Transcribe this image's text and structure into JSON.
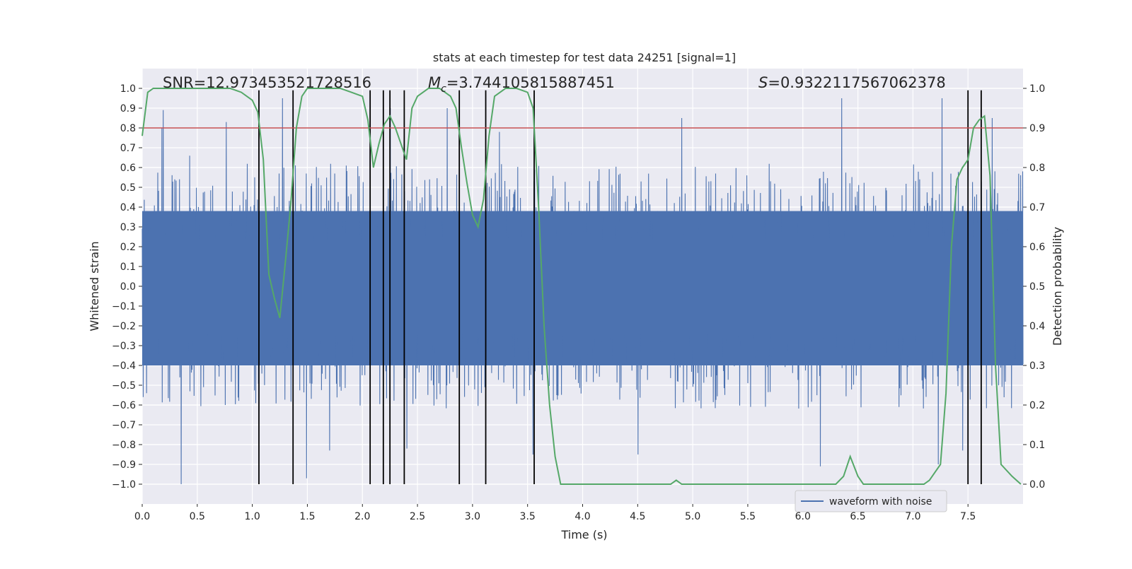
{
  "chart_data": {
    "type": "line",
    "title": "stats at each timestep for test data 24251 [signal=1]",
    "xlabel": "Time (s)",
    "ylabel": "Whitened strain",
    "y2label": "Detection probability",
    "xlim": [
      0.0,
      8.0
    ],
    "ylim": [
      -1.1,
      1.1
    ],
    "y2lim": [
      -0.05,
      1.05
    ],
    "xticks": [
      0.0,
      0.5,
      1.0,
      1.5,
      2.0,
      2.5,
      3.0,
      3.5,
      4.0,
      4.5,
      5.0,
      5.5,
      6.0,
      6.5,
      7.0,
      7.5
    ],
    "xtick_labels": [
      "0.0",
      "0.5",
      "1.0",
      "1.5",
      "2.0",
      "2.5",
      "3.0",
      "3.5",
      "4.0",
      "4.5",
      "5.0",
      "5.5",
      "6.0",
      "6.5",
      "7.0",
      "7.5"
    ],
    "yticks": [
      1.0,
      0.9,
      0.8,
      0.7,
      0.6,
      0.5,
      0.4,
      0.3,
      0.2,
      0.1,
      0.0,
      -0.1,
      -0.2,
      -0.3,
      -0.4,
      -0.5,
      -0.6,
      -0.7,
      -0.8,
      -0.9,
      -1.0
    ],
    "ytick_labels": [
      "1.0",
      "0.9",
      "0.8",
      "0.7",
      "0.6",
      "0.5",
      "0.4",
      "0.3",
      "0.2",
      "0.1",
      "0.0",
      "−0.1",
      "−0.2",
      "−0.3",
      "−0.4",
      "−0.5",
      "−0.6",
      "−0.7",
      "−0.8",
      "−0.9",
      "−1.0"
    ],
    "y2ticks": [
      1.0,
      0.9,
      0.8,
      0.7,
      0.6,
      0.5,
      0.4,
      0.3,
      0.2,
      0.1,
      0.0
    ],
    "y2tick_labels": [
      "1.0",
      "0.9",
      "0.8",
      "0.7",
      "0.6",
      "0.5",
      "0.4",
      "0.3",
      "0.2",
      "0.1",
      "0.0"
    ],
    "grid": true,
    "legend": {
      "position": "lower-right",
      "entries": [
        "waveform with noise"
      ]
    },
    "annotations": {
      "snr": "SNR=12.973453521728516",
      "mc_symbol": "M",
      "mc_sub": "c",
      "mc_value": "=3.744105815887451",
      "s_symbol": "S",
      "s_value": "=0.9322117567062378"
    },
    "threshold": {
      "axis": "y2",
      "value": 0.9,
      "color": "#c44e52"
    },
    "vlines": {
      "x": [
        1.06,
        1.37,
        2.07,
        2.19,
        2.25,
        2.38,
        2.88,
        3.12,
        3.56,
        7.5,
        7.62
      ],
      "ymin": -1.0,
      "ymax": 0.99
    },
    "series": [
      {
        "name": "waveform with noise",
        "axis": "y1",
        "color": "#4c72b0",
        "kind": "noise_band",
        "x_range": [
          0.0,
          8.0
        ],
        "samples": 2600,
        "dense_band": [
          -0.4,
          0.38
        ],
        "typical_peak_range": [
          0.35,
          0.62
        ],
        "visible_spikes": [
          {
            "x": 0.18,
            "y": 0.8
          },
          {
            "x": 0.19,
            "y": 0.89
          },
          {
            "x": 0.35,
            "y": -1.0
          },
          {
            "x": 0.43,
            "y": 0.66
          },
          {
            "x": 0.76,
            "y": 0.83
          },
          {
            "x": 1.27,
            "y": 0.95
          },
          {
            "x": 1.49,
            "y": -0.97
          },
          {
            "x": 1.7,
            "y": -0.83
          },
          {
            "x": 2.25,
            "y": 0.9
          },
          {
            "x": 2.4,
            "y": -0.82
          },
          {
            "x": 2.77,
            "y": 0.9
          },
          {
            "x": 3.24,
            "y": 0.78
          },
          {
            "x": 3.55,
            "y": -0.85
          },
          {
            "x": 4.5,
            "y": -0.85
          },
          {
            "x": 4.9,
            "y": 0.85
          },
          {
            "x": 6.16,
            "y": -0.91
          },
          {
            "x": 6.35,
            "y": 0.95
          },
          {
            "x": 7.26,
            "y": 0.95
          },
          {
            "x": 7.23,
            "y": -0.9
          },
          {
            "x": 7.45,
            "y": -0.83
          },
          {
            "x": 7.72,
            "y": 0.85
          }
        ]
      },
      {
        "name": "detection probability",
        "axis": "y2",
        "color": "#55a868",
        "x": [
          0.0,
          0.05,
          0.1,
          0.2,
          0.3,
          0.4,
          0.5,
          0.6,
          0.7,
          0.8,
          0.9,
          1.0,
          1.05,
          1.1,
          1.15,
          1.2,
          1.25,
          1.3,
          1.35,
          1.4,
          1.45,
          1.5,
          1.6,
          1.7,
          1.8,
          1.9,
          2.0,
          2.05,
          2.1,
          2.15,
          2.2,
          2.25,
          2.3,
          2.35,
          2.4,
          2.45,
          2.5,
          2.6,
          2.7,
          2.8,
          2.85,
          2.9,
          2.95,
          3.0,
          3.05,
          3.1,
          3.15,
          3.2,
          3.3,
          3.4,
          3.5,
          3.55,
          3.6,
          3.65,
          3.7,
          3.75,
          3.8,
          3.9,
          4.0,
          4.1,
          4.2,
          4.3,
          4.4,
          4.5,
          4.6,
          4.7,
          4.8,
          4.85,
          4.9,
          5.0,
          5.2,
          5.4,
          5.6,
          5.8,
          6.0,
          6.1,
          6.2,
          6.3,
          6.37,
          6.43,
          6.5,
          6.55,
          6.6,
          6.7,
          6.8,
          6.9,
          7.0,
          7.1,
          7.15,
          7.2,
          7.25,
          7.3,
          7.35,
          7.4,
          7.45,
          7.5,
          7.55,
          7.6,
          7.65,
          7.7,
          7.75,
          7.8,
          7.9,
          7.98
        ],
        "values": [
          0.88,
          0.99,
          1.0,
          1.0,
          1.0,
          1.0,
          1.0,
          1.0,
          1.0,
          1.0,
          0.99,
          0.97,
          0.94,
          0.82,
          0.53,
          0.47,
          0.42,
          0.56,
          0.71,
          0.9,
          0.98,
          1.0,
          1.0,
          1.0,
          1.0,
          0.99,
          0.98,
          0.92,
          0.8,
          0.86,
          0.91,
          0.93,
          0.9,
          0.86,
          0.82,
          0.95,
          0.98,
          1.0,
          1.0,
          0.98,
          0.95,
          0.85,
          0.76,
          0.68,
          0.65,
          0.72,
          0.88,
          0.98,
          1.0,
          1.0,
          0.99,
          0.95,
          0.7,
          0.4,
          0.2,
          0.07,
          0.0,
          0.0,
          0.0,
          0.0,
          0.0,
          0.0,
          0.0,
          0.0,
          0.0,
          0.0,
          0.0,
          0.01,
          0.0,
          0.0,
          0.0,
          0.0,
          0.0,
          0.0,
          0.0,
          0.0,
          0.0,
          0.0,
          0.02,
          0.07,
          0.02,
          0.0,
          0.0,
          0.0,
          0.0,
          0.0,
          0.0,
          0.0,
          0.01,
          0.03,
          0.05,
          0.23,
          0.6,
          0.77,
          0.8,
          0.82,
          0.9,
          0.92,
          0.93,
          0.78,
          0.3,
          0.05,
          0.02,
          0.0
        ]
      }
    ]
  }
}
